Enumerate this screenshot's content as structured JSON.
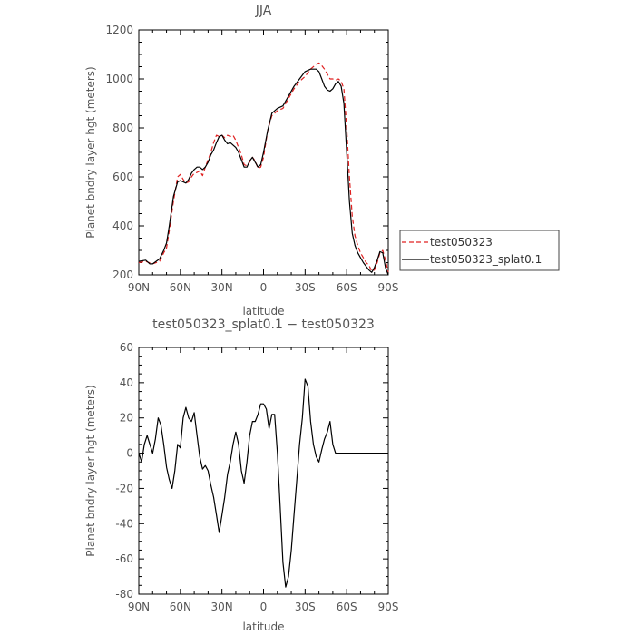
{
  "chart_data": [
    {
      "type": "line",
      "title": "JJA",
      "xlabel": "latitude",
      "ylabel": "Planet bndry layer hgt (meters)",
      "xlim": [
        -90,
        90
      ],
      "ylim": [
        200,
        1200
      ],
      "x_ticks": [
        {
          "value": -90,
          "label": "90N"
        },
        {
          "value": -60,
          "label": "60N"
        },
        {
          "value": -30,
          "label": "30N"
        },
        {
          "value": 0,
          "label": "0"
        },
        {
          "value": 30,
          "label": "30S"
        },
        {
          "value": 60,
          "label": "60S"
        },
        {
          "value": 90,
          "label": "90S"
        }
      ],
      "y_ticks": [
        200,
        400,
        600,
        800,
        1000,
        1200
      ],
      "grid": false,
      "legend": "right",
      "series": [
        {
          "name": "test050323",
          "color": "#e02020",
          "dash": true,
          "x": [
            -90,
            -85,
            -80,
            -75,
            -72,
            -70,
            -68,
            -65,
            -62,
            -60,
            -58,
            -56,
            -54,
            -52,
            -50,
            -48,
            -46,
            -44,
            -42,
            -40,
            -38,
            -36,
            -34,
            -32,
            -30,
            -28,
            -26,
            -24,
            -22,
            -20,
            -18,
            -16,
            -14,
            -12,
            -10,
            -8,
            -6,
            -4,
            -2,
            0,
            3,
            6,
            10,
            14,
            18,
            22,
            26,
            30,
            34,
            38,
            40,
            42,
            44,
            46,
            48,
            50,
            52,
            54,
            56,
            58,
            60,
            62,
            64,
            66,
            68,
            70,
            72,
            74,
            76,
            78,
            80,
            82,
            84,
            86,
            88,
            90
          ],
          "y": [
            250,
            255,
            245,
            255,
            290,
            310,
            380,
            500,
            600,
            610,
            590,
            575,
            580,
            600,
            615,
            618,
            625,
            605,
            640,
            670,
            700,
            740,
            770,
            765,
            770,
            760,
            770,
            765,
            770,
            750,
            720,
            690,
            650,
            645,
            660,
            680,
            665,
            635,
            640,
            680,
            790,
            850,
            870,
            880,
            920,
            960,
            990,
            1010,
            1040,
            1060,
            1065,
            1055,
            1040,
            1020,
            1000,
            1000,
            995,
            1000,
            990,
            960,
            800,
            600,
            440,
            360,
            320,
            290,
            270,
            250,
            240,
            215,
            220,
            250,
            290,
            300,
            260,
            210
          ]
        },
        {
          "name": "test050323_splat0.1",
          "color": "#000000",
          "dash": false,
          "x": [
            -90,
            -85,
            -82,
            -80,
            -75,
            -72,
            -70,
            -68,
            -65,
            -62,
            -60,
            -58,
            -56,
            -54,
            -52,
            -50,
            -48,
            -46,
            -44,
            -42,
            -40,
            -38,
            -36,
            -34,
            -32,
            -30,
            -28,
            -26,
            -24,
            -22,
            -20,
            -18,
            -16,
            -14,
            -12,
            -10,
            -8,
            -6,
            -4,
            -2,
            0,
            3,
            6,
            10,
            14,
            18,
            22,
            26,
            30,
            34,
            38,
            40,
            42,
            44,
            46,
            48,
            50,
            52,
            54,
            56,
            58,
            60,
            62,
            64,
            66,
            68,
            70,
            72,
            74,
            76,
            78,
            80,
            82,
            84,
            86,
            88,
            90
          ],
          "y": [
            255,
            260,
            245,
            245,
            265,
            300,
            330,
            400,
            520,
            580,
            585,
            580,
            575,
            590,
            615,
            630,
            640,
            640,
            630,
            640,
            660,
            690,
            710,
            740,
            765,
            770,
            750,
            735,
            740,
            730,
            720,
            700,
            670,
            640,
            640,
            665,
            680,
            660,
            640,
            650,
            700,
            790,
            860,
            880,
            890,
            930,
            970,
            1000,
            1030,
            1040,
            1040,
            1030,
            1000,
            970,
            955,
            950,
            960,
            980,
            990,
            970,
            900,
            700,
            500,
            370,
            320,
            290,
            270,
            250,
            235,
            220,
            210,
            230,
            260,
            295,
            290,
            230,
            200
          ]
        }
      ]
    },
    {
      "type": "line",
      "title": "test050323_splat0.1 − test050323",
      "xlabel": "latitude",
      "ylabel": "Planet bndry layer hgt (meters)",
      "xlim": [
        -90,
        90
      ],
      "ylim": [
        -80,
        60
      ],
      "x_ticks": [
        {
          "value": -90,
          "label": "90N"
        },
        {
          "value": -60,
          "label": "60N"
        },
        {
          "value": -30,
          "label": "30N"
        },
        {
          "value": 0,
          "label": "0"
        },
        {
          "value": 30,
          "label": "30S"
        },
        {
          "value": 60,
          "label": "60S"
        },
        {
          "value": 90,
          "label": "90S"
        }
      ],
      "y_ticks": [
        -80,
        -60,
        -40,
        -20,
        0,
        20,
        40,
        60
      ],
      "grid": false,
      "series": [
        {
          "color": "#000000",
          "dash": false,
          "x": [
            -90,
            -88,
            -86,
            -84,
            -82,
            -80,
            -78,
            -76,
            -74,
            -72,
            -70,
            -68,
            -66,
            -64,
            -62,
            -60,
            -58,
            -56,
            -54,
            -52,
            -50,
            -48,
            -46,
            -44,
            -42,
            -40,
            -38,
            -36,
            -34,
            -32,
            -30,
            -28,
            -26,
            -24,
            -22,
            -20,
            -18,
            -16,
            -14,
            -12,
            -10,
            -8,
            -6,
            -4,
            -2,
            0,
            2,
            4,
            6,
            8,
            10,
            12,
            14,
            16,
            18,
            20,
            22,
            24,
            26,
            28,
            30,
            32,
            34,
            36,
            38,
            40,
            42,
            44,
            46,
            48,
            50,
            52,
            54,
            56,
            58,
            60,
            62,
            64,
            66,
            68,
            70,
            72,
            74,
            76,
            78,
            80,
            82,
            84,
            86,
            88,
            90
          ],
          "y": [
            0,
            -5,
            5,
            10,
            5,
            0,
            8,
            20,
            16,
            5,
            -8,
            -15,
            -20,
            -10,
            5,
            3,
            20,
            26,
            20,
            18,
            23,
            10,
            -2,
            -9,
            -7,
            -10,
            -18,
            -25,
            -35,
            -45,
            -35,
            -25,
            -12,
            -5,
            5,
            12,
            5,
            -10,
            -17,
            -5,
            10,
            18,
            18,
            22,
            28,
            28,
            25,
            14,
            22,
            22,
            0,
            -30,
            -62,
            -76,
            -70,
            -55,
            -35,
            -15,
            5,
            20,
            42,
            38,
            18,
            5,
            -2,
            -5,
            2,
            8,
            12,
            18,
            5,
            0,
            0,
            0,
            0,
            0,
            0,
            0,
            0,
            0,
            0,
            0,
            0,
            0,
            0,
            0,
            0,
            0,
            0,
            0,
            0
          ]
        }
      ]
    }
  ]
}
